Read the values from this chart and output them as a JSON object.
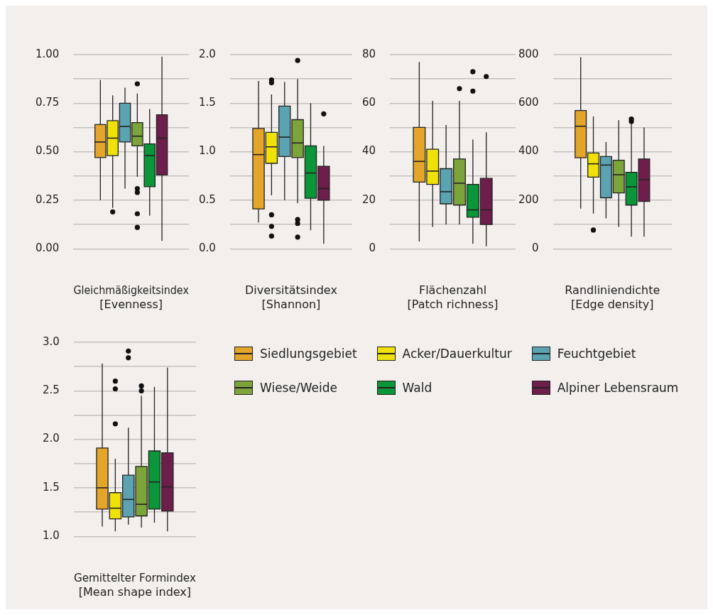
{
  "chart_data": [
    {
      "type": "box",
      "xlabel": "Gleichmäßigkeitsindex\n[Evenness]",
      "categories": [
        null
      ],
      "ylim": [
        0,
        1
      ],
      "yticks": [
        {
          "value": 0,
          "label": "0.00"
        },
        {
          "value": 0.125,
          "label": null
        },
        {
          "value": 0.25,
          "label": "0.25"
        },
        {
          "value": 0.375,
          "label": null
        },
        {
          "value": 0.5,
          "label": "0.50"
        },
        {
          "value": 0.625,
          "label": null
        },
        {
          "value": 0.75,
          "label": "0.75"
        },
        {
          "value": 0.875,
          "label": null
        },
        {
          "value": 1,
          "label": "1.00"
        }
      ],
      "grid": "y",
      "series": [
        {
          "color": "#e3a52a",
          "boxes": [
            {
              "low": 0.25,
              "q1": 0.47,
              "median": 0.55,
              "q3": 0.64,
              "high": 0.87
            }
          ]
        },
        {
          "color": "#f0e10a",
          "boxes": [
            {
              "low": 0.21,
              "q1": 0.48,
              "median": 0.57,
              "q3": 0.66,
              "high": 0.79,
              "outliers": [
                0.19
              ]
            }
          ]
        },
        {
          "color": "#5ba3b0",
          "boxes": [
            {
              "low": 0.31,
              "q1": 0.55,
              "median": 0.63,
              "q3": 0.75,
              "high": 0.83
            }
          ]
        },
        {
          "color": "#7da43a",
          "boxes": [
            {
              "low": 0.37,
              "q1": 0.53,
              "median": 0.58,
              "q3": 0.65,
              "high": 0.8,
              "outliers": [
                0.85,
                0.31,
                0.29,
                0.18,
                0.11
              ]
            }
          ]
        },
        {
          "color": "#0a9639",
          "boxes": [
            {
              "low": 0.17,
              "q1": 0.32,
              "median": 0.48,
              "q3": 0.54,
              "high": 0.72
            }
          ]
        },
        {
          "color": "#6e1e4b",
          "boxes": [
            {
              "low": 0.04,
              "q1": 0.38,
              "median": 0.57,
              "q3": 0.69,
              "high": 0.99
            }
          ]
        }
      ]
    },
    {
      "type": "box",
      "xlabel": "Diversitätsindex\n[Shannon]",
      "categories": [
        null
      ],
      "ylim": [
        0,
        2
      ],
      "yticks": [
        {
          "value": 0,
          "label": "0.0"
        },
        {
          "value": 0.25,
          "label": null
        },
        {
          "value": 0.5,
          "label": "0.5"
        },
        {
          "value": 0.75,
          "label": null
        },
        {
          "value": 1,
          "label": "1.0"
        },
        {
          "value": 1.25,
          "label": null
        },
        {
          "value": 1.5,
          "label": "1.5"
        },
        {
          "value": 1.75,
          "label": null
        },
        {
          "value": 2,
          "label": "2.0"
        }
      ],
      "grid": "y",
      "series": [
        {
          "color": "#e3a52a",
          "boxes": [
            {
              "low": 0.27,
              "q1": 0.41,
              "median": 0.97,
              "q3": 1.24,
              "high": 1.73
            }
          ]
        },
        {
          "color": "#f0e10a",
          "boxes": [
            {
              "low": 0.55,
              "q1": 0.88,
              "median": 1.05,
              "q3": 1.2,
              "high": 1.59,
              "outliers": [
                1.74,
                1.71,
                0.35,
                0.23,
                0.13
              ]
            }
          ]
        },
        {
          "color": "#5ba3b0",
          "boxes": [
            {
              "low": 0.5,
              "q1": 0.95,
              "median": 1.15,
              "q3": 1.47,
              "high": 1.72
            }
          ]
        },
        {
          "color": "#7da43a",
          "boxes": [
            {
              "low": 0.47,
              "q1": 0.94,
              "median": 1.09,
              "q3": 1.33,
              "high": 1.75,
              "outliers": [
                1.94,
                0.3,
                0.26,
                0.12
              ]
            }
          ]
        },
        {
          "color": "#0a9639",
          "boxes": [
            {
              "low": 0.19,
              "q1": 0.52,
              "median": 0.78,
              "q3": 1.06,
              "high": 1.5
            }
          ]
        },
        {
          "color": "#6e1e4b",
          "boxes": [
            {
              "low": 0.05,
              "q1": 0.5,
              "median": 0.62,
              "q3": 0.85,
              "high": 1.06,
              "outliers": [
                1.39
              ]
            }
          ]
        }
      ]
    },
    {
      "type": "box",
      "xlabel": "Flächenzahl\n[Patch richness]",
      "categories": [
        null
      ],
      "ylim": [
        0,
        80
      ],
      "yticks": [
        0,
        {
          "value": 10,
          "label": null
        },
        20,
        {
          "value": 30,
          "label": null
        },
        40,
        {
          "value": 50,
          "label": null
        },
        60,
        {
          "value": 70,
          "label": null
        },
        80
      ],
      "grid": "y",
      "series": [
        {
          "color": "#e3a52a",
          "boxes": [
            {
              "low": 3,
              "q1": 27.5,
              "median": 36,
              "q3": 50,
              "high": 77
            }
          ]
        },
        {
          "color": "#f0e10a",
          "boxes": [
            {
              "low": 9,
              "q1": 26.5,
              "median": 32,
              "q3": 41,
              "high": 61
            }
          ]
        },
        {
          "color": "#5ba3b0",
          "boxes": [
            {
              "low": 10,
              "q1": 18.5,
              "median": 23.5,
              "q3": 33,
              "high": 51
            }
          ]
        },
        {
          "color": "#7da43a",
          "boxes": [
            {
              "low": 10,
              "q1": 18,
              "median": 27,
              "q3": 37,
              "high": 61,
              "outliers": [
                66
              ]
            }
          ]
        },
        {
          "color": "#0a9639",
          "boxes": [
            {
              "low": 2,
              "q1": 13,
              "median": 16,
              "q3": 26.5,
              "high": 45,
              "outliers": [
                73,
                65
              ]
            }
          ]
        },
        {
          "color": "#6e1e4b",
          "boxes": [
            {
              "low": 1,
              "q1": 10,
              "median": 16,
              "q3": 29,
              "high": 48,
              "outliers": [
                71
              ]
            }
          ]
        }
      ]
    },
    {
      "type": "box",
      "xlabel": "Randliniendichte\n[Edge density]",
      "categories": [
        null
      ],
      "ylim": [
        0,
        800
      ],
      "yticks": [
        0,
        {
          "value": 100,
          "label": null
        },
        200,
        {
          "value": 300,
          "label": null
        },
        400,
        {
          "value": 500,
          "label": null
        },
        600,
        {
          "value": 700,
          "label": null
        },
        800
      ],
      "grid": "y",
      "series": [
        {
          "color": "#e3a52a",
          "boxes": [
            {
              "low": 165,
              "q1": 375,
              "median": 505,
              "q3": 570,
              "high": 790
            }
          ]
        },
        {
          "color": "#f0e10a",
          "boxes": [
            {
              "low": 145,
              "q1": 295,
              "median": 350,
              "q3": 395,
              "high": 545,
              "outliers": [
                77
              ]
            }
          ]
        },
        {
          "color": "#5ba3b0",
          "boxes": [
            {
              "low": 125,
              "q1": 210,
              "median": 345,
              "q3": 380,
              "high": 440
            }
          ]
        },
        {
          "color": "#7da43a",
          "boxes": [
            {
              "low": 90,
              "q1": 230,
              "median": 305,
              "q3": 365,
              "high": 530
            }
          ]
        },
        {
          "color": "#0a9639",
          "boxes": [
            {
              "low": 50,
              "q1": 180,
              "median": 255,
              "q3": 315,
              "high": 515,
              "outliers": [
                535,
                525
              ]
            }
          ]
        },
        {
          "color": "#6e1e4b",
          "boxes": [
            {
              "low": 50,
              "q1": 195,
              "median": 285,
              "q3": 370,
              "high": 500
            }
          ]
        }
      ]
    },
    {
      "type": "box",
      "xlabel": "Gemittelter Formindex\n[Mean shape index]",
      "categories": [
        null
      ],
      "ylim": [
        1,
        3
      ],
      "yticks": [
        {
          "value": 1,
          "label": "1.0"
        },
        {
          "value": 1.25,
          "label": null
        },
        {
          "value": 1.5,
          "label": "1.5"
        },
        {
          "value": 1.75,
          "label": null
        },
        {
          "value": 2,
          "label": "2.0"
        },
        {
          "value": 2.25,
          "label": null
        },
        {
          "value": 2.5,
          "label": "2.5"
        },
        {
          "value": 2.75,
          "label": null
        },
        {
          "value": 3,
          "label": "3.0"
        }
      ],
      "grid": "y",
      "legend": "right",
      "series": [
        {
          "name": "Siedlungsgebiet",
          "color": "#e3a52a",
          "boxes": [
            {
              "low": 1.1,
              "q1": 1.28,
              "median": 1.5,
              "q3": 1.91,
              "high": 2.78
            }
          ]
        },
        {
          "name": "Acker/Dauerkultur",
          "color": "#f0e10a",
          "boxes": [
            {
              "low": 1.05,
              "q1": 1.18,
              "median": 1.29,
              "q3": 1.45,
              "high": 1.8,
              "outliers": [
                2.6,
                2.52,
                2.16
              ]
            }
          ]
        },
        {
          "name": "Feuchtgebiet",
          "color": "#5ba3b0",
          "boxes": [
            {
              "low": 1.12,
              "q1": 1.2,
              "median": 1.38,
              "q3": 1.63,
              "high": 2.12,
              "outliers": [
                2.91,
                2.84
              ]
            }
          ]
        },
        {
          "name": "Wiese/Weide",
          "color": "#7da43a",
          "boxes": [
            {
              "low": 1.09,
              "q1": 1.21,
              "median": 1.33,
              "q3": 1.72,
              "high": 2.45,
              "outliers": [
                2.55,
                2.5
              ]
            }
          ]
        },
        {
          "name": "Wald",
          "color": "#0a9639",
          "boxes": [
            {
              "low": 1.14,
              "q1": 1.28,
              "median": 1.56,
              "q3": 1.88,
              "high": 2.54
            }
          ]
        },
        {
          "name": "Alpiner Lebensraum",
          "color": "#6e1e4b",
          "boxes": [
            {
              "low": 1.05,
              "q1": 1.26,
              "median": 1.51,
              "q3": 1.86,
              "high": 2.74
            }
          ]
        }
      ]
    }
  ]
}
